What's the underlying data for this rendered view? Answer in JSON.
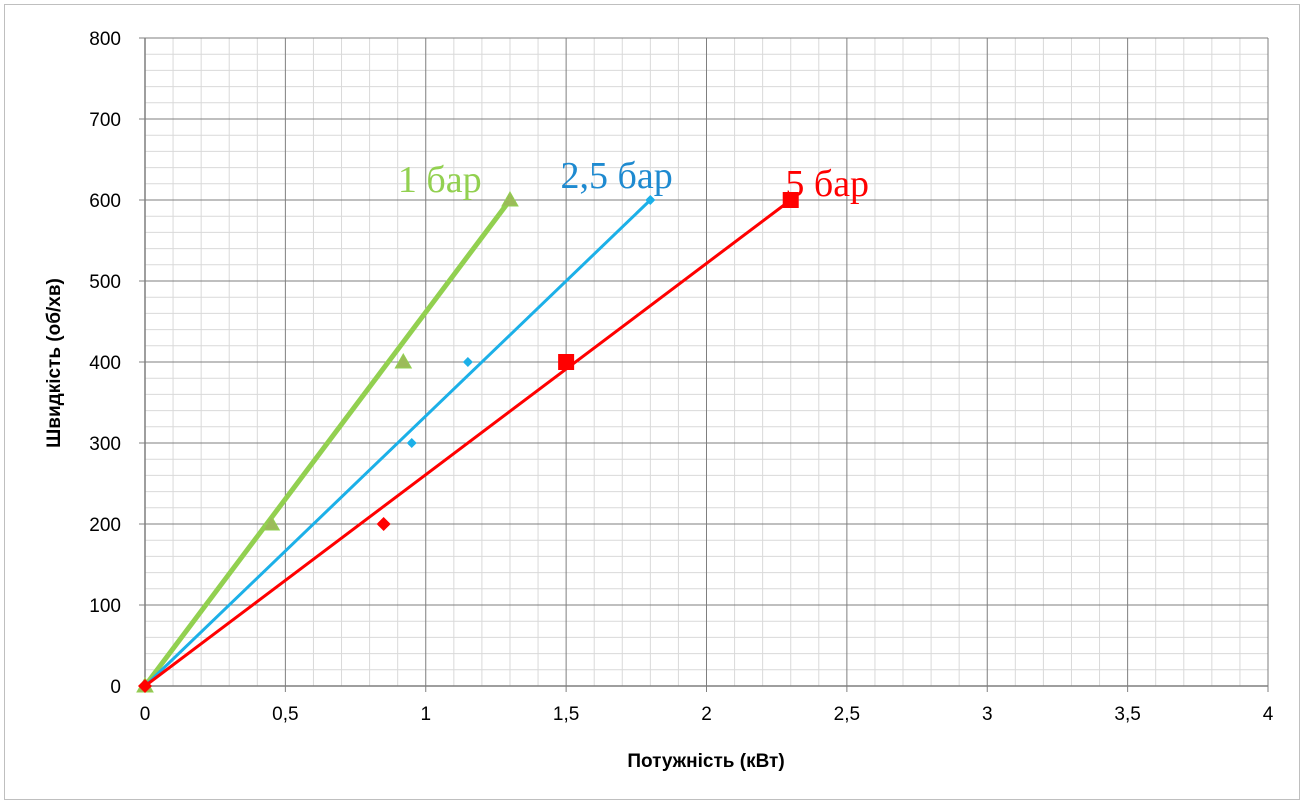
{
  "chart_data": {
    "type": "scatter",
    "title": "",
    "xlabel": "Потужність (кВт)",
    "ylabel": "Швидкість (об/хв)",
    "xlim": [
      0,
      4
    ],
    "ylim": [
      0,
      800
    ],
    "x_ticks": [
      "0",
      "0,5",
      "1",
      "1,5",
      "2",
      "2,5",
      "3",
      "3,5",
      "4"
    ],
    "y_ticks": [
      "0",
      "100",
      "200",
      "300",
      "400",
      "500",
      "600",
      "700",
      "800"
    ],
    "grid": true,
    "legend": "none",
    "series": [
      {
        "name": "1 бар",
        "color": "#92d050",
        "marker": "triangle",
        "points": [
          {
            "x": 0,
            "y": 0
          },
          {
            "x": 0.45,
            "y": 200
          },
          {
            "x": 0.92,
            "y": 400
          },
          {
            "x": 1.3,
            "y": 600
          }
        ],
        "trendline": {
          "from": [
            0,
            0
          ],
          "to": [
            1.3,
            600
          ]
        }
      },
      {
        "name": "2,5 бар",
        "color": "#1cb0e8",
        "marker": "diamond",
        "points": [
          {
            "x": 0,
            "y": 0
          },
          {
            "x": 0.95,
            "y": 300
          },
          {
            "x": 1.15,
            "y": 400
          },
          {
            "x": 1.8,
            "y": 600
          }
        ],
        "trendline": {
          "from": [
            0,
            0
          ],
          "to": [
            1.8,
            600
          ]
        }
      },
      {
        "name": "5 бар",
        "color": "#ff0000",
        "marker": "square",
        "points": [
          {
            "x": 0,
            "y": 0
          },
          {
            "x": 0.85,
            "y": 200
          },
          {
            "x": 1.5,
            "y": 400
          },
          {
            "x": 2.3,
            "y": 600
          }
        ],
        "trendline": {
          "from": [
            0,
            0
          ],
          "to": [
            2.3,
            600
          ]
        }
      }
    ],
    "annotations": [
      {
        "text": "1 бар",
        "color": "#92d050",
        "x": 1.05,
        "y": 610
      },
      {
        "text": "2,5 бар",
        "color": "#1e8ad0",
        "x": 1.68,
        "y": 615
      },
      {
        "text": "5 бар",
        "color": "#ff0000",
        "x": 2.43,
        "y": 605
      }
    ]
  }
}
